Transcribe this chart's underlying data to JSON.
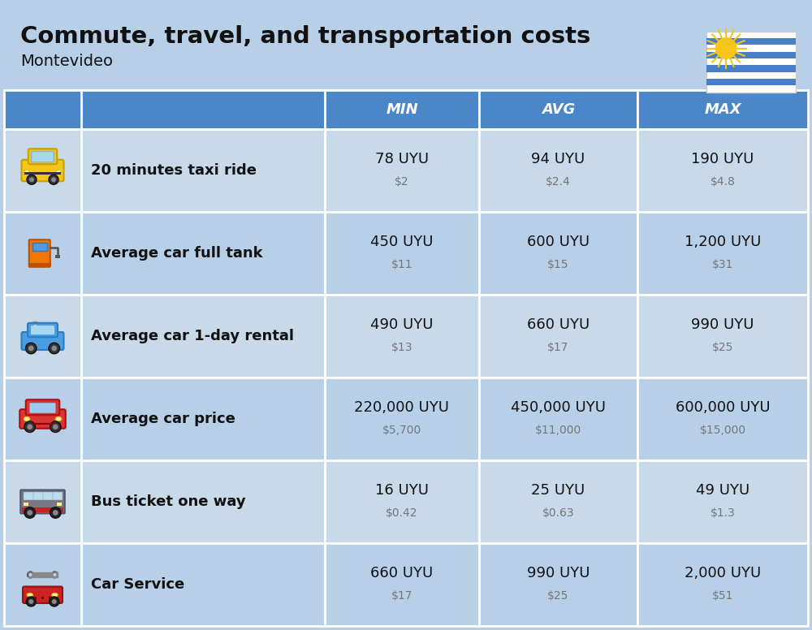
{
  "title": "Commute, travel, and transportation costs",
  "subtitle": "Montevideo",
  "background_color": "#b8cfe8",
  "header_color": "#4a86c8",
  "header_text_color": "#ffffff",
  "row_bg_even": "#c8d9ea",
  "row_bg_odd": "#b8cfe8",
  "divider_color": "#ffffff",
  "columns": [
    "MIN",
    "AVG",
    "MAX"
  ],
  "rows": [
    {
      "label": "20 minutes taxi ride",
      "min_uyu": "78 UYU",
      "min_usd": "$2",
      "avg_uyu": "94 UYU",
      "avg_usd": "$2.4",
      "max_uyu": "190 UYU",
      "max_usd": "$4.8"
    },
    {
      "label": "Average car full tank",
      "min_uyu": "450 UYU",
      "min_usd": "$11",
      "avg_uyu": "600 UYU",
      "avg_usd": "$15",
      "max_uyu": "1,200 UYU",
      "max_usd": "$31"
    },
    {
      "label": "Average car 1-day rental",
      "min_uyu": "490 UYU",
      "min_usd": "$13",
      "avg_uyu": "660 UYU",
      "avg_usd": "$17",
      "max_uyu": "990 UYU",
      "max_usd": "$25"
    },
    {
      "label": "Average car price",
      "min_uyu": "220,000 UYU",
      "min_usd": "$5,700",
      "avg_uyu": "450,000 UYU",
      "avg_usd": "$11,000",
      "max_uyu": "600,000 UYU",
      "max_usd": "$15,000"
    },
    {
      "label": "Bus ticket one way",
      "min_uyu": "16 UYU",
      "min_usd": "$0.42",
      "avg_uyu": "25 UYU",
      "avg_usd": "$0.63",
      "max_uyu": "49 UYU",
      "max_usd": "$1.3"
    },
    {
      "label": "Car Service",
      "min_uyu": "660 UYU",
      "min_usd": "$17",
      "avg_uyu": "990 UYU",
      "avg_usd": "$25",
      "max_uyu": "2,000 UYU",
      "max_usd": "$51"
    }
  ],
  "title_fontsize": 21,
  "subtitle_fontsize": 14,
  "header_fontsize": 13,
  "label_fontsize": 13,
  "value_fontsize": 13,
  "usd_fontsize": 10
}
